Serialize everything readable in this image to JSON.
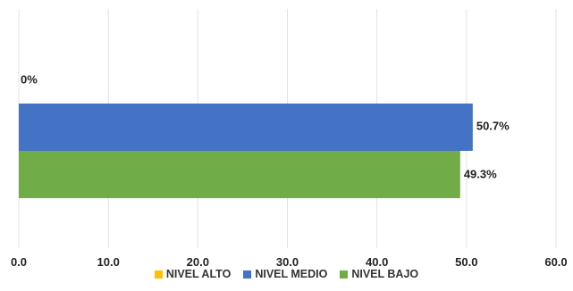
{
  "chart_data": {
    "type": "bar",
    "orientation": "horizontal",
    "title": "",
    "xlabel": "",
    "ylabel": "",
    "xlim": [
      0,
      60
    ],
    "x_ticks": [
      "0.0",
      "10.0",
      "20.0",
      "30.0",
      "40.0",
      "50.0",
      "60.0"
    ],
    "grid": true,
    "legend_position": "bottom",
    "series": [
      {
        "name": "NIVEL ALTO",
        "value": 0,
        "label": "0%",
        "color": "#FFC000"
      },
      {
        "name": "NIVEL MEDIO",
        "value": 50.7,
        "label": "50.7%",
        "color": "#4472C4"
      },
      {
        "name": "NIVEL BAJO",
        "value": 49.3,
        "label": "49.3%",
        "color": "#70AD47"
      }
    ]
  }
}
